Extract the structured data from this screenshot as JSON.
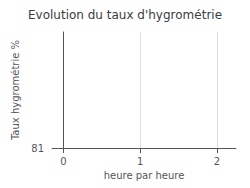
{
  "chart_data": {
    "type": "line",
    "title": "Evolution du taux d'hygrométrie",
    "xlabel": "heure par heure",
    "ylabel": "Taux hygrométrie %",
    "xlim": [
      -0.15,
      2.25
    ],
    "xticks": [
      0,
      1,
      2
    ],
    "ylim": [
      81,
      86
    ],
    "yticks": [
      81
    ],
    "grid": true
  }
}
